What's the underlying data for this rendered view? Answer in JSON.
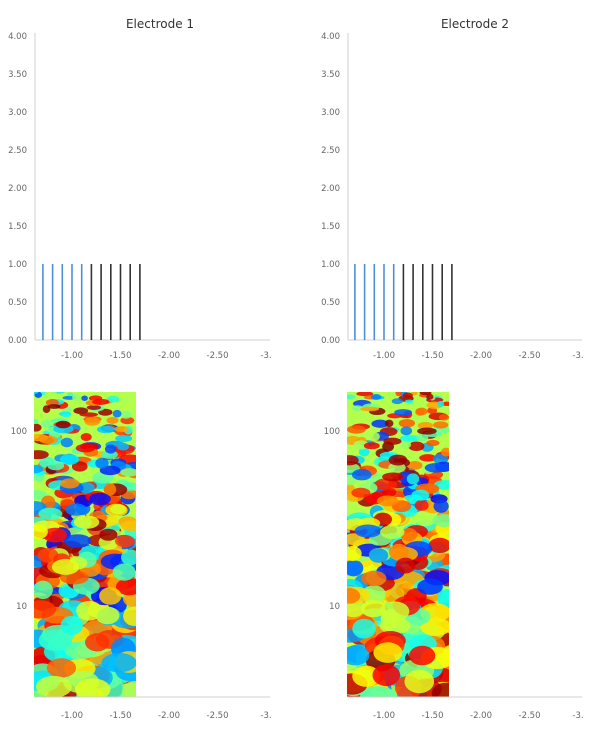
{
  "chart_data": [
    {
      "type": "event-raster",
      "title": "Electrode 1",
      "ylim": [
        0,
        4
      ],
      "yticks": [
        "0.00",
        "0.50",
        "1.00",
        "1.50",
        "2.00",
        "2.50",
        "3.00",
        "3.50",
        "4.00"
      ],
      "xticks": [
        "-1.00",
        "-1.50",
        "-2.00",
        "-2.50",
        "-3."
      ],
      "events": [
        {
          "t": -0.7,
          "h": 1,
          "color": "#4d90d8"
        },
        {
          "t": -0.8,
          "h": 1,
          "color": "#4d90d8"
        },
        {
          "t": -0.9,
          "h": 1,
          "color": "#4d90d8"
        },
        {
          "t": -1.0,
          "h": 1,
          "color": "#4d90d8"
        },
        {
          "t": -1.1,
          "h": 1,
          "color": "#4d90d8"
        },
        {
          "t": -1.2,
          "h": 1,
          "color": "#333333"
        },
        {
          "t": -1.3,
          "h": 1,
          "color": "#333333"
        },
        {
          "t": -1.4,
          "h": 1,
          "color": "#333333"
        },
        {
          "t": -1.5,
          "h": 1,
          "color": "#333333"
        },
        {
          "t": -1.6,
          "h": 1,
          "color": "#333333"
        },
        {
          "t": -1.7,
          "h": 1,
          "color": "#333333"
        }
      ]
    },
    {
      "type": "event-raster",
      "title": "Electrode 2",
      "ylim": [
        0,
        4
      ],
      "yticks": [
        "0.00",
        "0.50",
        "1.00",
        "1.50",
        "2.00",
        "2.50",
        "3.00",
        "3.50",
        "4.00"
      ],
      "xticks": [
        "-1.00",
        "-1.50",
        "-2.00",
        "-2.50",
        "-3."
      ],
      "events": [
        {
          "t": -0.7,
          "h": 1,
          "color": "#4d90d8"
        },
        {
          "t": -0.8,
          "h": 1,
          "color": "#4d90d8"
        },
        {
          "t": -0.9,
          "h": 1,
          "color": "#4d90d8"
        },
        {
          "t": -1.0,
          "h": 1,
          "color": "#4d90d8"
        },
        {
          "t": -1.1,
          "h": 1,
          "color": "#4d90d8"
        },
        {
          "t": -1.2,
          "h": 1,
          "color": "#333333"
        },
        {
          "t": -1.3,
          "h": 1,
          "color": "#333333"
        },
        {
          "t": -1.4,
          "h": 1,
          "color": "#333333"
        },
        {
          "t": -1.5,
          "h": 1,
          "color": "#333333"
        },
        {
          "t": -1.6,
          "h": 1,
          "color": "#333333"
        },
        {
          "t": -1.7,
          "h": 1,
          "color": "#333333"
        }
      ]
    },
    {
      "type": "heatmap",
      "yscale": "log",
      "yticks": [
        "10",
        "100"
      ],
      "xticks": [
        "-1.00",
        "-1.50",
        "-2.00",
        "-2.50",
        "-3."
      ],
      "data_x_range": [
        -0.7,
        -1.73
      ],
      "colormap": "jet"
    },
    {
      "type": "heatmap",
      "yscale": "log",
      "yticks": [
        "10",
        "100"
      ],
      "xticks": [
        "-1.00",
        "-1.50",
        "-2.00",
        "-2.50",
        "-3."
      ],
      "data_x_range": [
        -0.7,
        -1.73
      ],
      "colormap": "jet"
    }
  ]
}
